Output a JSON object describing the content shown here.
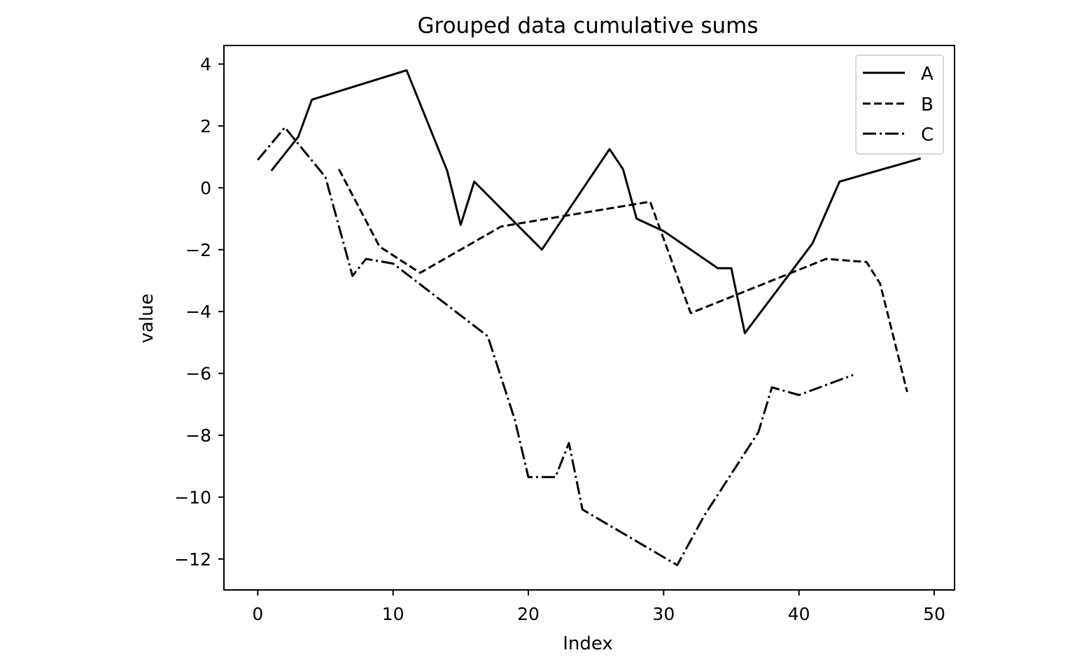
{
  "chart_data": {
    "type": "line",
    "title": "Grouped data cumulative sums",
    "xlabel": "Index",
    "ylabel": "value",
    "xlim": [
      -2.5,
      51.5
    ],
    "ylim": [
      -13,
      4.6
    ],
    "xticks": [
      0,
      10,
      20,
      30,
      40,
      50
    ],
    "yticks": [
      4,
      2,
      0,
      -2,
      -4,
      -6,
      -8,
      -10,
      -12
    ],
    "ytick_labels": [
      "4",
      "2",
      "0",
      "−2",
      "−4",
      "−6",
      "−8",
      "−10",
      "−12"
    ],
    "grid": false,
    "legend_position": "top-right",
    "series": [
      {
        "name": "A",
        "style": "solid",
        "x": [
          1,
          3,
          4,
          11,
          14,
          15,
          16,
          21,
          26,
          27,
          28,
          30,
          34,
          35,
          36,
          41,
          43,
          49
        ],
        "y": [
          0.55,
          1.65,
          2.85,
          3.8,
          0.55,
          -1.2,
          0.2,
          -2.0,
          1.25,
          0.6,
          -1.0,
          -1.4,
          -2.6,
          -2.6,
          -4.7,
          -1.8,
          0.2,
          0.95
        ]
      },
      {
        "name": "B",
        "style": "dashed",
        "x": [
          6,
          9,
          12,
          18,
          29,
          32,
          42,
          45,
          46,
          48
        ],
        "y": [
          0.6,
          -1.9,
          -2.75,
          -1.25,
          -0.45,
          -4.05,
          -2.3,
          -2.4,
          -3.1,
          -6.6
        ]
      },
      {
        "name": "C",
        "style": "dashdot",
        "x": [
          0,
          2,
          5,
          7,
          8,
          10,
          17,
          19,
          20,
          22,
          23,
          24,
          31,
          33,
          37,
          38,
          40,
          44
        ],
        "y": [
          0.9,
          1.95,
          0.35,
          -2.85,
          -2.3,
          -2.45,
          -4.8,
          -7.5,
          -9.35,
          -9.35,
          -8.25,
          -10.4,
          -12.2,
          -10.6,
          -7.9,
          -6.45,
          -6.7,
          -6.05
        ]
      }
    ]
  }
}
